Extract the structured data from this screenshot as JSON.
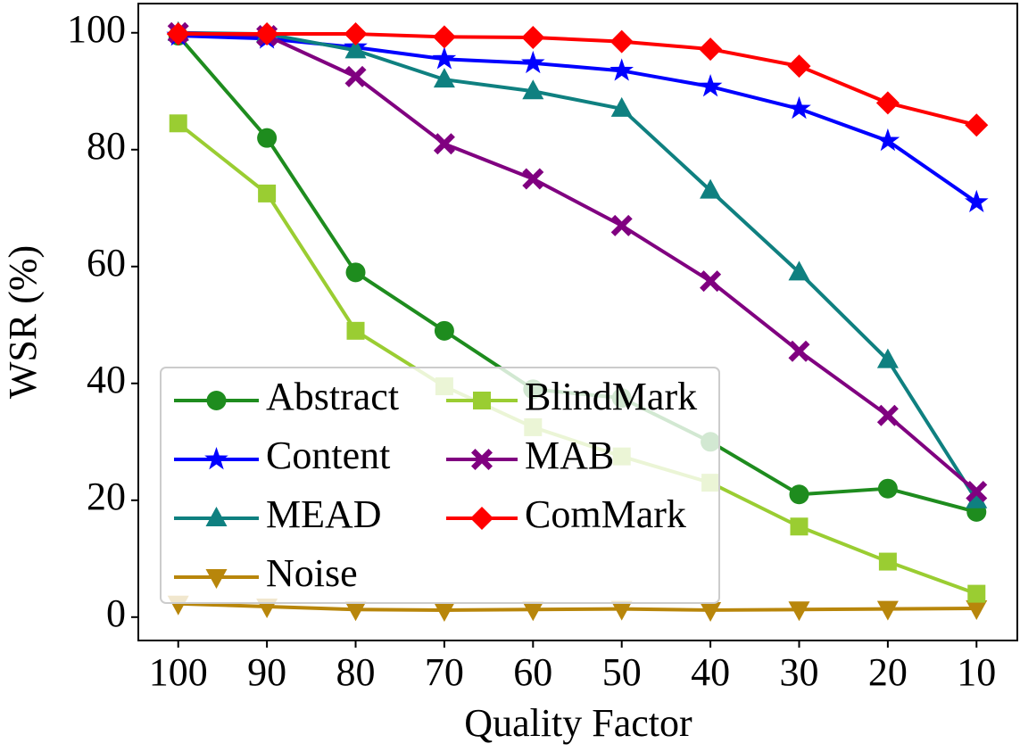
{
  "chart_data": {
    "type": "line",
    "xlabel": "Quality Factor",
    "ylabel": "WSR (%)",
    "x": [
      100,
      90,
      80,
      70,
      60,
      50,
      40,
      30,
      20,
      10
    ],
    "xlim": [
      104.5,
      5.4
    ],
    "xticks": [
      100,
      90,
      80,
      70,
      60,
      50,
      40,
      30,
      20,
      10
    ],
    "ylim": [
      -4,
      105
    ],
    "yticks": [
      0,
      20,
      40,
      60,
      80,
      100
    ],
    "legend": "lower left",
    "legend_columns": 2,
    "series": [
      {
        "name": "Abstract",
        "color": "#1e8c1e",
        "marker": "circle",
        "values": [
          99.5,
          82,
          59,
          49,
          39,
          37.5,
          30,
          21,
          22,
          18
        ]
      },
      {
        "name": "Content",
        "color": "#0000ff",
        "marker": "star",
        "values": [
          99.5,
          99,
          97.5,
          95.5,
          94.8,
          93.5,
          90.8,
          87,
          81.5,
          71
        ]
      },
      {
        "name": "MEAD",
        "color": "#0f8080",
        "marker": "triangle-up",
        "values": [
          100,
          99.8,
          97,
          92,
          90,
          87,
          73,
          59,
          44,
          20
        ]
      },
      {
        "name": "Noise",
        "color": "#b8860b",
        "marker": "triangle-down",
        "values": [
          2.3,
          1.8,
          1.3,
          1.2,
          1.3,
          1.4,
          1.2,
          1.3,
          1.4,
          1.5
        ]
      },
      {
        "name": "BlindMark",
        "color": "#9acd32",
        "marker": "square",
        "values": [
          84.5,
          72.5,
          49,
          39.5,
          32.5,
          27.5,
          23,
          15.5,
          9.5,
          4
        ]
      },
      {
        "name": "MAB",
        "color": "#800080",
        "marker": "x",
        "values": [
          100,
          99.5,
          92.5,
          81,
          75,
          67,
          57.5,
          45.5,
          34.5,
          21.5
        ]
      },
      {
        "name": "ComMark",
        "color": "#ff0000",
        "marker": "diamond",
        "values": [
          99.8,
          99.8,
          99.8,
          99.3,
          99.2,
          98.5,
          97.2,
          94.3,
          88,
          84.2
        ]
      }
    ]
  }
}
